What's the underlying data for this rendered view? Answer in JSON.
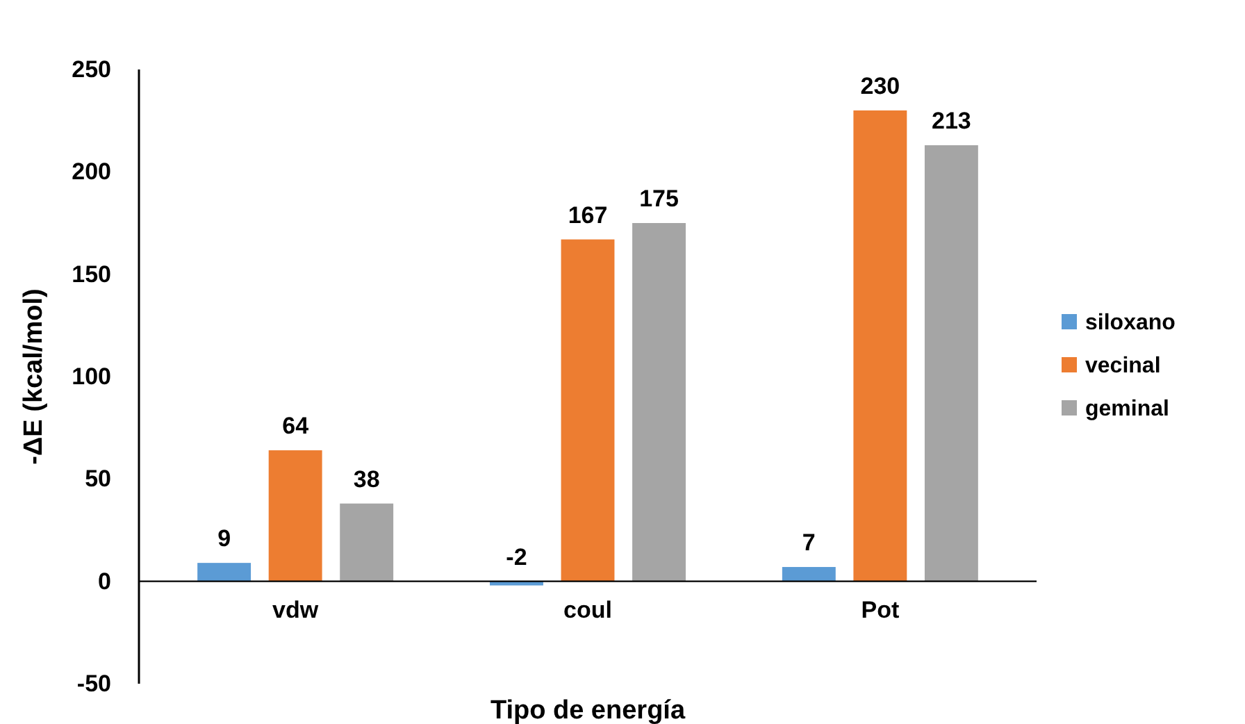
{
  "chart_data": {
    "type": "bar",
    "xlabel": "Tipo de energía",
    "ylabel": "-ΔE (kcal/mol)",
    "categories": [
      "vdw",
      "coul",
      "Pot"
    ],
    "series": [
      {
        "name": "siloxano",
        "color": "#5b9bd5",
        "values": [
          9,
          -2,
          7
        ]
      },
      {
        "name": "vecinal",
        "color": "#ed7d31",
        "values": [
          64,
          167,
          230
        ]
      },
      {
        "name": "geminal",
        "color": "#a5a5a5",
        "values": [
          38,
          175,
          213
        ]
      }
    ],
    "ylim": [
      -50,
      250
    ],
    "yticks": [
      -50,
      0,
      50,
      100,
      150,
      200,
      250
    ],
    "data_labels": true,
    "legend": "right",
    "grid": false
  }
}
